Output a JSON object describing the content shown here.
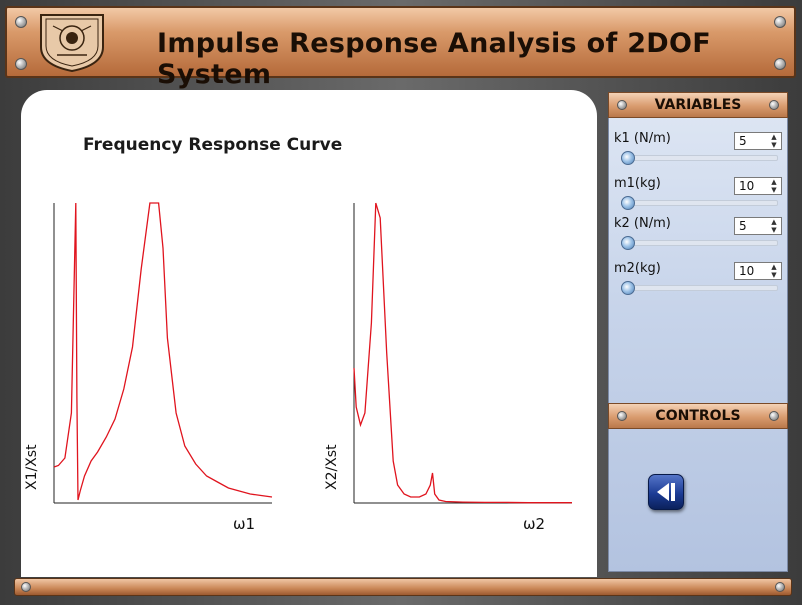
{
  "header": {
    "title": "Impulse Response Analysis of 2DOF System"
  },
  "plot": {
    "heading": "Frequency Response Curve"
  },
  "variables": {
    "section_title": "VARIABLES",
    "items": [
      {
        "label": "k1 (N/m)",
        "value": "5",
        "slider_fraction": 0.0
      },
      {
        "label": "m1(kg)",
        "value": "10",
        "slider_fraction": 0.0
      },
      {
        "label": "k2 (N/m)",
        "value": "5",
        "slider_fraction": 0.0
      },
      {
        "label": "m2(kg)",
        "value": "10",
        "slider_fraction": 0.0
      }
    ]
  },
  "controls": {
    "section_title": "CONTROLS",
    "play_icon": "step-back-icon"
  },
  "colors": {
    "curve": "#e0141e",
    "accent_bronze": "#c98656",
    "panel_blue": "#c7d4ea"
  },
  "chart_data": [
    {
      "type": "line",
      "title": "",
      "xlabel": "ω1",
      "ylabel": "X1/Xst",
      "series": [
        {
          "x": [
            0,
            0.2,
            0.5,
            0.8,
            1.0,
            1.05,
            1.1,
            1.2,
            1.4,
            1.7,
            2.0,
            2.4,
            2.8,
            3.2,
            3.6,
            4.0,
            4.4,
            4.8,
            5.0,
            5.2,
            5.6,
            6.0,
            6.5,
            7.0,
            7.5,
            8.0,
            8.5,
            9.0,
            9.5,
            10
          ],
          "y": [
            0.12,
            0.125,
            0.15,
            0.3,
            1.0,
            0.35,
            0.01,
            0.04,
            0.09,
            0.14,
            0.17,
            0.22,
            0.28,
            0.38,
            0.52,
            0.78,
            1.0,
            1.0,
            0.85,
            0.55,
            0.3,
            0.19,
            0.13,
            0.09,
            0.07,
            0.05,
            0.04,
            0.03,
            0.025,
            0.02
          ]
        }
      ]
    },
    {
      "type": "line",
      "title": "",
      "xlabel": "ω2",
      "ylabel": "X2/Xst",
      "series": [
        {
          "x": [
            0,
            0.1,
            0.3,
            0.5,
            0.8,
            1.0,
            1.2,
            1.5,
            1.8,
            2.0,
            2.3,
            2.6,
            3.0,
            3.3,
            3.5,
            3.6,
            3.7,
            3.9,
            4.2,
            5.0,
            6.0,
            7.0,
            8.0,
            9.0,
            10
          ],
          "y": [
            0.45,
            0.32,
            0.26,
            0.3,
            0.6,
            1.0,
            0.95,
            0.5,
            0.14,
            0.06,
            0.03,
            0.02,
            0.02,
            0.03,
            0.06,
            0.1,
            0.03,
            0.01,
            0.005,
            0.003,
            0.002,
            0.002,
            0.001,
            0.001,
            0.001
          ]
        }
      ]
    }
  ]
}
